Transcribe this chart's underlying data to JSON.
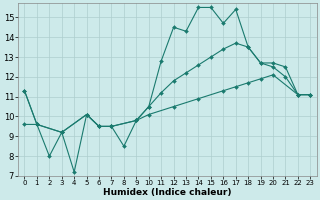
{
  "xlabel": "Humidex (Indice chaleur)",
  "bg_color": "#cdeaea",
  "grid_color": "#aecece",
  "line_color": "#1a7a6e",
  "xlim": [
    -0.5,
    23.5
  ],
  "ylim": [
    7,
    15.7
  ],
  "yticks": [
    7,
    8,
    9,
    10,
    11,
    12,
    13,
    14,
    15
  ],
  "xticks": [
    0,
    1,
    2,
    3,
    4,
    5,
    6,
    7,
    8,
    9,
    10,
    11,
    12,
    13,
    14,
    15,
    16,
    17,
    18,
    19,
    20,
    21,
    22,
    23
  ],
  "line1_x": [
    0,
    1,
    2,
    3,
    4,
    5,
    6,
    7,
    8,
    9,
    10,
    11,
    12,
    13,
    14,
    15,
    16,
    17,
    18,
    19,
    20,
    21,
    22,
    23
  ],
  "line1_y": [
    11.3,
    9.6,
    8.0,
    9.2,
    7.2,
    10.1,
    9.5,
    9.5,
    8.5,
    9.8,
    10.5,
    12.8,
    14.5,
    14.3,
    15.5,
    15.5,
    14.7,
    15.4,
    13.5,
    12.7,
    12.5,
    12.0,
    11.1,
    11.1
  ],
  "line2_x": [
    0,
    1,
    3,
    5,
    6,
    7,
    9,
    10,
    11,
    12,
    13,
    14,
    15,
    16,
    17,
    18,
    19,
    20,
    21,
    22,
    23
  ],
  "line2_y": [
    11.3,
    9.6,
    9.2,
    10.1,
    9.5,
    9.5,
    9.8,
    10.5,
    11.2,
    11.8,
    12.2,
    12.6,
    13.0,
    13.4,
    13.7,
    13.5,
    12.7,
    12.7,
    12.5,
    11.1,
    11.1
  ],
  "line3_x": [
    0,
    1,
    3,
    5,
    6,
    7,
    9,
    10,
    12,
    14,
    16,
    17,
    18,
    19,
    20,
    22,
    23
  ],
  "line3_y": [
    9.6,
    9.6,
    9.2,
    10.1,
    9.5,
    9.5,
    9.8,
    10.1,
    10.5,
    10.9,
    11.3,
    11.5,
    11.7,
    11.9,
    12.1,
    11.1,
    11.1
  ]
}
